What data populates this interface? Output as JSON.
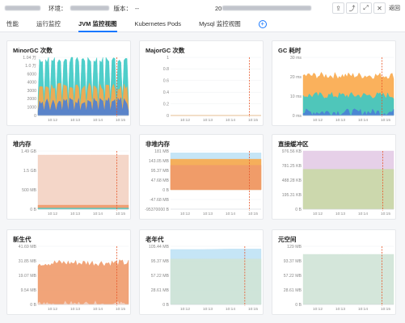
{
  "header": {
    "env_label": "环境：",
    "version_label": "版本：",
    "version_value": "--",
    "start_prefix": "20",
    "back_label": "返回",
    "icons": [
      "export-icon",
      "share-icon",
      "fullscreen-icon",
      "close-icon"
    ]
  },
  "tabs": [
    {
      "label": "性能",
      "active": false
    },
    {
      "label": "运行监控",
      "active": false
    },
    {
      "label": "JVM 监控视图",
      "active": true
    },
    {
      "label": "Kubernetes Pods",
      "active": false
    },
    {
      "label": "Mysql 监控视图",
      "active": false
    }
  ],
  "colors": {
    "teal": "#3cc9c4",
    "orange": "#f9a94a",
    "blue": "#4a7fd6",
    "salmon": "#ef9a6a",
    "peach": "#f3d1c2",
    "purple": "#e3cbe6",
    "olive": "#c9d8a6",
    "lightblue": "#bfe2f5",
    "sage": "#cfe3d6",
    "cursor": "#e8572a"
  },
  "chart_data": [
    {
      "id": "minor-gc",
      "type": "area",
      "title": "MinorGC 次数",
      "yticks": [
        "1.04 万",
        "1.0 万",
        "6000",
        "4000",
        "3000",
        "2000",
        "1000",
        "0"
      ],
      "ylim": [
        0,
        10400
      ],
      "xticks": [
        "10:12",
        "10:13",
        "10:14",
        "10:15"
      ],
      "series": [
        {
          "color": "teal",
          "base": 10000,
          "note": "top band"
        },
        {
          "color": "orange",
          "base": 5200
        },
        {
          "color": "blue",
          "base": 2600
        }
      ]
    },
    {
      "id": "major-gc",
      "type": "line",
      "title": "MajorGC 次数",
      "yticks": [
        "1",
        "0.8",
        "0.6",
        "0.4",
        "0.2",
        "0"
      ],
      "ylim": [
        0,
        1
      ],
      "xticks": [
        "10:12",
        "10:13",
        "10:14",
        "10:15"
      ],
      "series": [
        {
          "color": "orange",
          "values": [
            0,
            0,
            0,
            0
          ]
        }
      ]
    },
    {
      "id": "gc-time",
      "type": "area",
      "title": "GC 耗时",
      "yticks": [
        "30 ms",
        "20 ms",
        "10 ms",
        "0 ms"
      ],
      "ylim": [
        0,
        35
      ],
      "xticks": [
        "10:12",
        "10:13",
        "10:14",
        "10:15"
      ],
      "series": [
        {
          "color": "orange",
          "base": 24
        },
        {
          "color": "teal",
          "base": 12
        },
        {
          "color": "blue",
          "base": 2
        }
      ]
    },
    {
      "id": "heap",
      "type": "area",
      "title": "堆内存",
      "yticks": [
        "1.49 GB",
        "1.5 GB",
        "500 MB",
        "0 B"
      ],
      "ylim": [
        0,
        1.6
      ],
      "xticks": [
        "10:12",
        "10:13",
        "10:14",
        "10:15"
      ],
      "series": [
        {
          "color": "peach",
          "values": [
            1.49,
            1.49,
            1.49,
            1.49
          ]
        },
        {
          "color": "salmon",
          "values": [
            0.11,
            0.11,
            0.11,
            0.11
          ]
        },
        {
          "color": "teal",
          "values": [
            0.03,
            0.03,
            0.03,
            0.03
          ]
        }
      ]
    },
    {
      "id": "non-heap",
      "type": "area",
      "title": "非堆内存",
      "yticks": [
        "181 MB",
        "143.05 MB",
        "95.37 MB",
        "47.68 MB",
        "0 B",
        "-47.68 MB",
        "-95370000 B"
      ],
      "ylim": [
        -95.37,
        190
      ],
      "xticks": [
        "10:12",
        "10:13",
        "10:14",
        "10:15"
      ],
      "series": [
        {
          "color": "lightblue",
          "values": [
            181,
            181,
            181,
            181
          ]
        },
        {
          "color": "orange",
          "values": [
            150,
            150,
            150,
            150
          ]
        },
        {
          "color": "salmon",
          "values": [
            120,
            120,
            120,
            120
          ]
        }
      ]
    },
    {
      "id": "direct-buffer",
      "type": "area",
      "title": "直接缓冲区",
      "yticks": [
        "976.56 KB",
        "781.25 KB",
        "488.28 KB",
        "195.31 KB",
        "0 B"
      ],
      "ylim": [
        0,
        1050
      ],
      "xticks": [
        "10:12",
        "10:13",
        "10:14",
        "10:15"
      ],
      "series": [
        {
          "color": "purple",
          "values": [
            1050,
            1050,
            1050,
            1050
          ]
        },
        {
          "color": "olive",
          "values": [
            720,
            720,
            720,
            720
          ]
        }
      ]
    },
    {
      "id": "young-gen",
      "type": "area",
      "title": "新生代",
      "yticks": [
        "41.69 MB",
        "31.85 MB",
        "19.07 MB",
        "9.54 MB",
        "0 B"
      ],
      "ylim": [
        0,
        42
      ],
      "xticks": [
        "10:12",
        "10:13",
        "10:14",
        "10:15"
      ],
      "series": [
        {
          "color": "salmon",
          "base": 30
        },
        {
          "color": "peach",
          "base": 0
        }
      ]
    },
    {
      "id": "old-gen",
      "type": "area",
      "title": "老年代",
      "yticks": [
        "105.44 MB",
        "95.37 MB",
        "57.22 MB",
        "28.61 MB",
        "0 B"
      ],
      "ylim": [
        0,
        110
      ],
      "xticks": [
        "10:12",
        "10:13",
        "10:14",
        "10:15"
      ],
      "series": [
        {
          "color": "lightblue",
          "values": [
            104,
            104,
            105,
            105
          ]
        },
        {
          "color": "sage",
          "values": [
            86,
            86,
            86,
            86
          ]
        }
      ]
    },
    {
      "id": "metaspace",
      "type": "area",
      "title": "元空间",
      "yticks": [
        "129 MB",
        "93.37 MB",
        "57.22 MB",
        "28.61 MB",
        "0 B"
      ],
      "ylim": [
        0,
        130
      ],
      "xticks": [
        "10:12",
        "10:13",
        "10:14",
        "10:15"
      ],
      "series": [
        {
          "color": "sage",
          "values": [
            112,
            112,
            112,
            112
          ]
        }
      ]
    }
  ]
}
